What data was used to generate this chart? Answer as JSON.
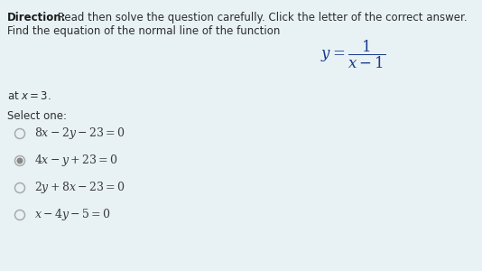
{
  "background_color": "#e8f2f5",
  "direction_bold": "Direction:",
  "direction_text": " Read then solve the question carefully. Click the letter of the correct answer.",
  "line2": "Find the equation of the normal line of the function",
  "at_x": "at $x = 3.$",
  "select_one": "Select one:",
  "selected_index": 1,
  "text_color": "#2c2c2c",
  "formula_color": "#1a3a8a",
  "option_color": "#3a3a3a",
  "radio_color": "#aaaaaa",
  "selected_radio_color": "#888888",
  "direction_bold_color": "#1a1a1a",
  "fontsize_main": 8.5,
  "fontsize_option": 9.0,
  "fontsize_formula": 12
}
